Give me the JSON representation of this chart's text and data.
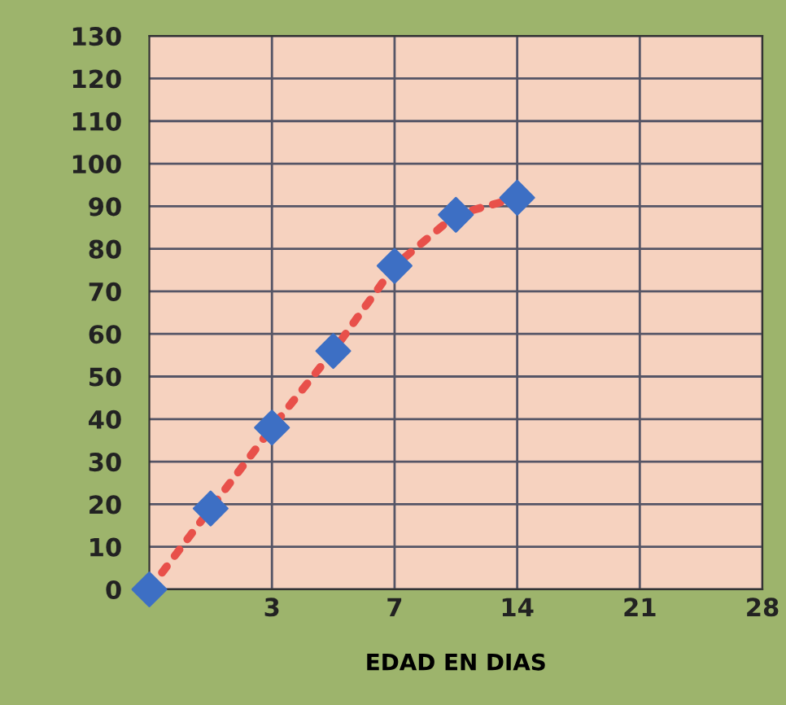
{
  "chart_data": {
    "type": "line",
    "xlabel": "EDAD EN DIAS",
    "categories": [
      null,
      null,
      "3",
      null,
      "7",
      null,
      "14",
      null,
      "21",
      null,
      "28"
    ],
    "series": [
      {
        "color": "#e8504a",
        "line_style": "dotted",
        "marker": "none",
        "values": [
          0,
          19,
          38,
          56,
          76,
          88,
          92,
          null,
          null,
          null,
          null
        ]
      },
      {
        "type": "scatter",
        "color": "#3d6fc4",
        "marker": "diamond",
        "values": [
          0,
          19,
          38,
          56,
          76,
          88,
          92,
          null,
          null,
          null,
          null
        ]
      }
    ],
    "ylim": [
      0,
      130
    ],
    "yticks": [
      0,
      10,
      20,
      30,
      40,
      50,
      60,
      70,
      80,
      90,
      100,
      110,
      120,
      130
    ],
    "grid": true,
    "legend": false
  }
}
